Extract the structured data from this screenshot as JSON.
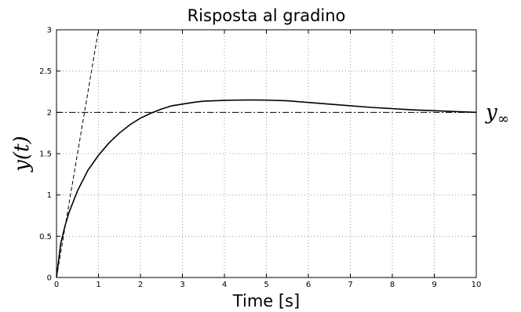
{
  "chart_data": {
    "type": "line",
    "title": "Risposta al gradino",
    "xlabel": "Time [s]",
    "ylabel": "y(t)",
    "xlim": [
      0,
      10
    ],
    "ylim": [
      0,
      3
    ],
    "x_ticks": [
      0,
      1,
      2,
      3,
      4,
      5,
      6,
      7,
      8,
      9,
      10
    ],
    "x_tick_labels": [
      "0",
      "1",
      "2",
      "3",
      "4",
      "5",
      "6",
      "7",
      "8",
      "9",
      "10"
    ],
    "y_ticks": [
      0,
      0.5,
      1,
      1.5,
      2,
      2.5,
      3
    ],
    "y_tick_labels": [
      "0",
      "0.5",
      "1",
      "1.5",
      "2",
      "2.5",
      "3"
    ],
    "grid": true,
    "series": [
      {
        "style": "solid",
        "x": [
          0,
          0.1,
          0.2,
          0.3,
          0.5,
          0.75,
          1,
          1.25,
          1.5,
          1.75,
          2,
          2.25,
          2.5,
          2.75,
          3,
          3.25,
          3.5,
          3.75,
          4,
          4.25,
          4.5,
          4.75,
          5,
          5.5,
          6,
          6.5,
          7,
          7.5,
          8,
          8.5,
          9,
          9.5,
          10
        ],
        "y": [
          0,
          0.41,
          0.62,
          0.79,
          1.05,
          1.3,
          1.48,
          1.63,
          1.75,
          1.85,
          1.93,
          1.99,
          2.04,
          2.08,
          2.1,
          2.12,
          2.135,
          2.14,
          2.145,
          2.148,
          2.15,
          2.15,
          2.148,
          2.14,
          2.12,
          2.1,
          2.08,
          2.06,
          2.045,
          2.03,
          2.02,
          2.01,
          2.0
        ]
      },
      {
        "style": "dashed",
        "x": [
          0,
          1.0
        ],
        "y": [
          0,
          3
        ]
      },
      {
        "style": "dashdot",
        "x": [
          0,
          10
        ],
        "y": [
          2,
          2
        ]
      }
    ],
    "annotations": [
      {
        "text": "y",
        "subscript": "∞",
        "x": 10,
        "y": 2
      }
    ]
  }
}
